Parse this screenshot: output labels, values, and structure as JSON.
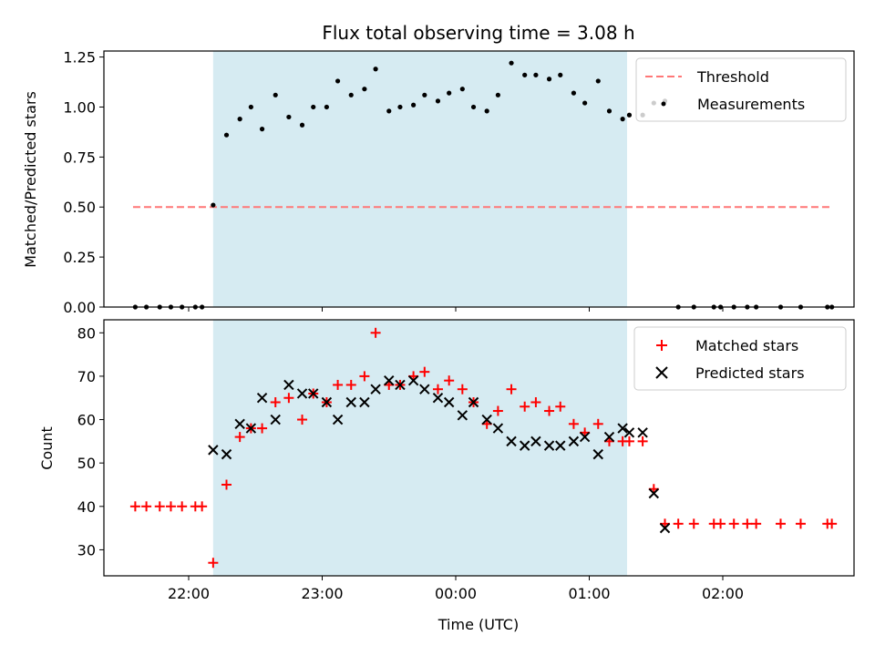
{
  "chart_data": [
    {
      "type": "scatter",
      "title": "Flux total observing time = 3.08 h",
      "xlabel": "",
      "ylabel": "Matched/Predicted stars",
      "ylim": [
        0,
        1.28
      ],
      "yticks": [
        "0.00",
        "0.25",
        "0.50",
        "0.75",
        "1.00",
        "1.25"
      ],
      "ytick_values": [
        0,
        0.25,
        0.5,
        0.75,
        1.0,
        1.25
      ],
      "shaded_interval": [
        "22:11",
        "01:17"
      ],
      "legend_position": "upper right",
      "grid": false,
      "threshold": {
        "name": "Threshold",
        "value": 0.5,
        "x_start": "21:35",
        "x_end": "02:48",
        "color": "#ff7777"
      },
      "series": [
        {
          "name": "Measurements",
          "color": "#000000",
          "x": [
            "21:36",
            "21:41",
            "21:47",
            "21:52",
            "21:57",
            "22:03",
            "22:06",
            "22:11",
            "22:17",
            "22:23",
            "22:28",
            "22:33",
            "22:39",
            "22:45",
            "22:51",
            "22:56",
            "23:02",
            "23:07",
            "23:13",
            "23:19",
            "23:24",
            "23:30",
            "23:35",
            "23:41",
            "23:46",
            "23:52",
            "23:57",
            "00:03",
            "00:08",
            "00:14",
            "00:19",
            "00:25",
            "00:31",
            "00:36",
            "00:42",
            "00:47",
            "00:53",
            "00:58",
            "01:04",
            "01:09",
            "01:15",
            "01:18",
            "01:24",
            "01:29",
            "01:34",
            "01:40",
            "01:47",
            "01:56",
            "01:59",
            "02:05",
            "02:11",
            "02:15",
            "02:26",
            "02:35",
            "02:47",
            "02:49"
          ],
          "y": [
            0,
            0,
            0,
            0,
            0,
            0,
            0,
            0.51,
            0.86,
            0.94,
            1.0,
            0.89,
            1.06,
            0.95,
            0.91,
            1.0,
            1.0,
            1.13,
            1.06,
            1.09,
            1.19,
            0.98,
            1.0,
            1.01,
            1.06,
            1.03,
            1.07,
            1.09,
            1.0,
            0.98,
            1.06,
            1.22,
            1.16,
            1.16,
            1.14,
            1.16,
            1.07,
            1.02,
            1.13,
            0.98,
            0.94,
            0.96,
            0.96,
            1.02,
            1.03,
            0,
            0,
            0,
            0,
            0,
            0,
            0,
            0,
            0,
            0,
            0
          ]
        }
      ]
    },
    {
      "type": "scatter",
      "title": "",
      "xlabel": "Time (UTC)",
      "ylabel": "Count",
      "ylim": [
        24,
        83
      ],
      "yticks": [
        "30",
        "40",
        "50",
        "60",
        "70",
        "80"
      ],
      "ytick_values": [
        30,
        40,
        50,
        60,
        70,
        80
      ],
      "xticks": [
        "22:00",
        "23:00",
        "00:00",
        "01:00",
        "02:00"
      ],
      "shaded_interval": [
        "22:11",
        "01:17"
      ],
      "legend_position": "upper right",
      "grid": false,
      "series": [
        {
          "name": "Matched stars",
          "marker": "plus",
          "color": "#ff0000",
          "x": [
            "21:36",
            "21:41",
            "21:47",
            "21:52",
            "21:57",
            "22:03",
            "22:06",
            "22:11",
            "22:17",
            "22:23",
            "22:28",
            "22:33",
            "22:39",
            "22:45",
            "22:51",
            "22:56",
            "23:02",
            "23:07",
            "23:13",
            "23:19",
            "23:24",
            "23:30",
            "23:35",
            "23:41",
            "23:46",
            "23:52",
            "23:57",
            "00:03",
            "00:08",
            "00:14",
            "00:19",
            "00:25",
            "00:31",
            "00:36",
            "00:42",
            "00:47",
            "00:53",
            "00:58",
            "01:04",
            "01:09",
            "01:15",
            "01:18",
            "01:24",
            "01:29",
            "01:34",
            "01:40",
            "01:47",
            "01:56",
            "01:59",
            "02:05",
            "02:11",
            "02:15",
            "02:26",
            "02:35",
            "02:47",
            "02:49"
          ],
          "y": [
            40,
            40,
            40,
            40,
            40,
            40,
            40,
            27,
            45,
            56,
            58,
            58,
            64,
            65,
            60,
            66,
            64,
            68,
            68,
            70,
            80,
            68,
            68,
            70,
            71,
            67,
            69,
            67,
            64,
            59,
            62,
            67,
            63,
            64,
            62,
            63,
            59,
            57,
            59,
            55,
            55,
            55,
            55,
            44,
            36,
            36,
            36,
            36,
            36,
            36,
            36,
            36,
            36,
            36,
            36,
            36
          ]
        },
        {
          "name": "Predicted stars",
          "marker": "x",
          "color": "#000000",
          "x": [
            "22:11",
            "22:17",
            "22:23",
            "22:28",
            "22:33",
            "22:39",
            "22:45",
            "22:51",
            "22:56",
            "23:02",
            "23:07",
            "23:13",
            "23:19",
            "23:24",
            "23:30",
            "23:35",
            "23:41",
            "23:46",
            "23:52",
            "23:57",
            "00:03",
            "00:08",
            "00:14",
            "00:19",
            "00:25",
            "00:31",
            "00:36",
            "00:42",
            "00:47",
            "00:53",
            "00:58",
            "01:04",
            "01:09",
            "01:15",
            "01:18",
            "01:24",
            "01:29",
            "01:34"
          ],
          "y": [
            53,
            52,
            59,
            58,
            65,
            60,
            68,
            66,
            66,
            64,
            60,
            64,
            64,
            67,
            69,
            68,
            69,
            67,
            65,
            64,
            61,
            64,
            60,
            58,
            55,
            54,
            55,
            54,
            54,
            55,
            56,
            52,
            56,
            58,
            57,
            57,
            43,
            35
          ]
        }
      ]
    }
  ]
}
